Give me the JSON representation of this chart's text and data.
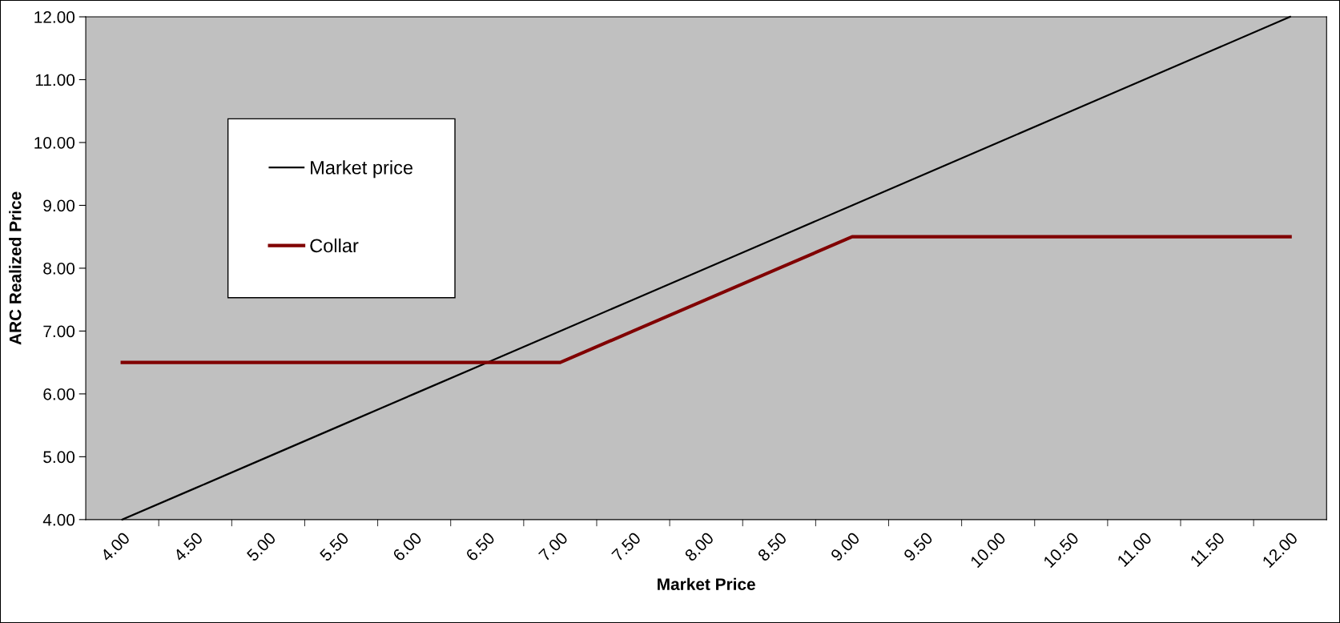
{
  "chart_data": {
    "type": "line",
    "xlabel": "Market Price",
    "ylabel": "ARC Realized Price",
    "categories": [
      "4.00",
      "4.50",
      "5.00",
      "5.50",
      "6.00",
      "6.50",
      "7.00",
      "7.50",
      "8.00",
      "8.50",
      "9.00",
      "9.50",
      "10.00",
      "10.50",
      "11.00",
      "11.50",
      "12.00"
    ],
    "series": [
      {
        "name": "Market price",
        "color": "#000000",
        "values": [
          4.0,
          4.5,
          5.0,
          5.5,
          6.0,
          6.5,
          7.0,
          7.5,
          8.0,
          8.5,
          9.0,
          9.5,
          10.0,
          10.5,
          11.0,
          11.5,
          12.0
        ]
      },
      {
        "name": "Collar",
        "color": "#800000",
        "values": [
          6.5,
          6.5,
          6.5,
          6.5,
          6.5,
          6.5,
          6.5,
          7.0,
          7.5,
          8.0,
          8.5,
          8.5,
          8.5,
          8.5,
          8.5,
          8.5,
          8.5
        ]
      }
    ],
    "ylim": [
      4,
      12
    ],
    "yticks": [
      {
        "value": 4,
        "label": "4.00"
      },
      {
        "value": 5,
        "label": "5.00"
      },
      {
        "value": 6,
        "label": "6.00"
      },
      {
        "value": 7,
        "label": "7.00"
      },
      {
        "value": 8,
        "label": "8.00"
      },
      {
        "value": 9,
        "label": "9.00"
      },
      {
        "value": 10,
        "label": "10.00"
      },
      {
        "value": 11,
        "label": "11.00"
      },
      {
        "value": 12,
        "label": "12.00"
      }
    ],
    "grid": false,
    "legend": "top left",
    "marker": "none",
    "line_style": "solid"
  }
}
